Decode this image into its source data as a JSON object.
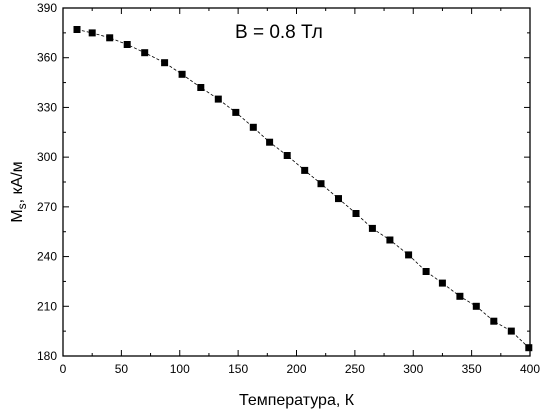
{
  "chart_data": {
    "type": "line",
    "annotation": "B = 0.8 Тл",
    "xlabel": "Температура, К",
    "ylabel_main": "M",
    "ylabel_sub": "s",
    "ylabel_rest": ", кА/м",
    "xlim": [
      0,
      400
    ],
    "ylim": [
      180,
      390
    ],
    "xticks": [
      0,
      50,
      100,
      150,
      200,
      250,
      300,
      350,
      400
    ],
    "yticks": [
      180,
      210,
      240,
      270,
      300,
      330,
      360,
      390
    ],
    "grid": false,
    "legend": "none",
    "series": [
      {
        "marker": "square",
        "line": "dashed",
        "color": "#000000",
        "x": [
          12,
          25,
          40,
          55,
          70,
          87,
          102,
          118,
          133,
          148,
          163,
          177,
          192,
          207,
          221,
          236,
          251,
          265,
          280,
          296,
          311,
          325,
          340,
          354,
          369,
          384,
          399
        ],
        "y": [
          377,
          375,
          372,
          368,
          363,
          357,
          350,
          342,
          335,
          327,
          318,
          309,
          301,
          292,
          284,
          275,
          266,
          257,
          250,
          241,
          231,
          224,
          216,
          210,
          201,
          195,
          185
        ]
      }
    ]
  }
}
